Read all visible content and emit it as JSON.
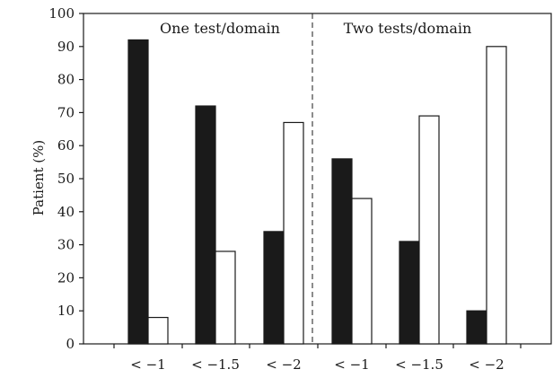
{
  "chart_data": {
    "type": "bar",
    "ylabel": "Patient (%)",
    "xlabel": "",
    "ylim": [
      0,
      100
    ],
    "yticks": [
      0,
      10,
      20,
      30,
      40,
      50,
      60,
      70,
      80,
      90,
      100
    ],
    "groups": [
      {
        "label": "One test/domain",
        "categories": [
          "< −1",
          "< −1.5",
          "< −2"
        ]
      },
      {
        "label": "Two tests/domain",
        "categories": [
          "< −1",
          "< −1.5",
          "< −2"
        ]
      }
    ],
    "categories": [
      "< −1",
      "< −1.5",
      "< −2",
      "< −1",
      "< −1.5",
      "< −2"
    ],
    "series": [
      {
        "values": [
          92,
          72,
          34,
          56,
          31,
          10
        ],
        "color": "#1a1a1a"
      },
      {
        "values": [
          8,
          28,
          67,
          44,
          69,
          90
        ],
        "color": "#ffffff"
      }
    ],
    "grid": false,
    "legend": "none",
    "group_divider": "dashed"
  }
}
